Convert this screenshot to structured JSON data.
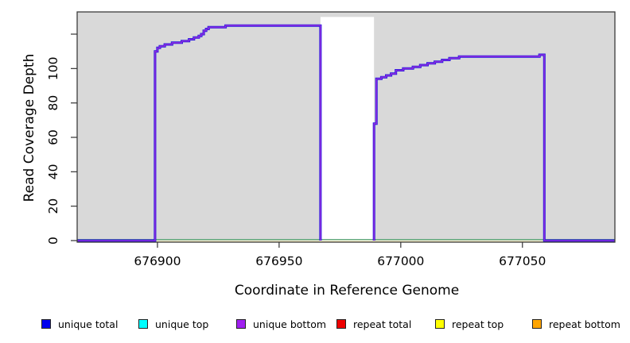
{
  "chart_data": {
    "type": "line",
    "title": "",
    "xlabel": "Coordinate in Reference Genome",
    "ylabel": "Read Coverage Depth",
    "xlim": [
      676867,
      677088
    ],
    "ylim": [
      0,
      133
    ],
    "x_ticks": [
      676900,
      676950,
      677000,
      677050
    ],
    "y_ticks": [
      0,
      20,
      40,
      60,
      80,
      100,
      120
    ],
    "y_tick_labels": [
      "0",
      "20",
      "40",
      "60",
      "80",
      "100",
      ""
    ],
    "grid": false,
    "legend_position": "bottom",
    "panel_color": "#d9d9d9",
    "panel_border_color": "#3c3c3c",
    "gap_region": {
      "from": 676967,
      "to": 676989,
      "top_value": 130,
      "color": "#ffffff"
    },
    "zero_lines": [
      {
        "name": "zero-line-yellow",
        "color": "#efe8bb",
        "value": -0.4
      },
      {
        "name": "zero-line-green",
        "color": "#5fa878",
        "value": 0.6
      }
    ],
    "segments": [
      {
        "start_x": 676867,
        "steps": [
          [
            676899,
            110
          ],
          [
            676900,
            112
          ],
          [
            676901,
            113
          ],
          [
            676903,
            114
          ],
          [
            676906,
            115
          ],
          [
            676910,
            116
          ],
          [
            676913,
            117
          ],
          [
            676915,
            118
          ],
          [
            676917,
            119
          ],
          [
            676918,
            120
          ],
          [
            676919,
            122
          ],
          [
            676920,
            123
          ],
          [
            676921,
            124
          ],
          [
            676928,
            125
          ],
          [
            676967,
            0
          ]
        ]
      },
      {
        "start_x": 676989,
        "steps": [
          [
            676989,
            68
          ],
          [
            676990,
            94
          ],
          [
            676992,
            95
          ],
          [
            676994,
            96
          ],
          [
            676996,
            97
          ],
          [
            676998,
            99
          ],
          [
            677001,
            100
          ],
          [
            677005,
            101
          ],
          [
            677008,
            102
          ],
          [
            677011,
            103
          ],
          [
            677014,
            104
          ],
          [
            677017,
            105
          ],
          [
            677020,
            106
          ],
          [
            677024,
            107
          ],
          [
            677056,
            107
          ],
          [
            677057,
            108
          ],
          [
            677059,
            0
          ],
          [
            677088,
            0
          ]
        ]
      }
    ],
    "series": [
      {
        "name": "unique total",
        "color": "#1a14e0",
        "width": 3
      },
      {
        "name": "unique bottom",
        "color": "#8c2be0",
        "width": 1.6
      }
    ]
  },
  "legend": {
    "items": [
      {
        "label": "unique total",
        "color": "#0000ee"
      },
      {
        "label": "unique top",
        "color": "#00ffff"
      },
      {
        "label": "unique bottom",
        "color": "#a020f0"
      },
      {
        "label": "repeat total",
        "color": "#ee0000"
      },
      {
        "label": "repeat top",
        "color": "#ffff00"
      },
      {
        "label": "repeat bottom",
        "color": "#ffa500"
      }
    ]
  },
  "titles": {
    "y_axis": "Read Coverage Depth",
    "x_axis": "Coordinate in Reference Genome"
  }
}
